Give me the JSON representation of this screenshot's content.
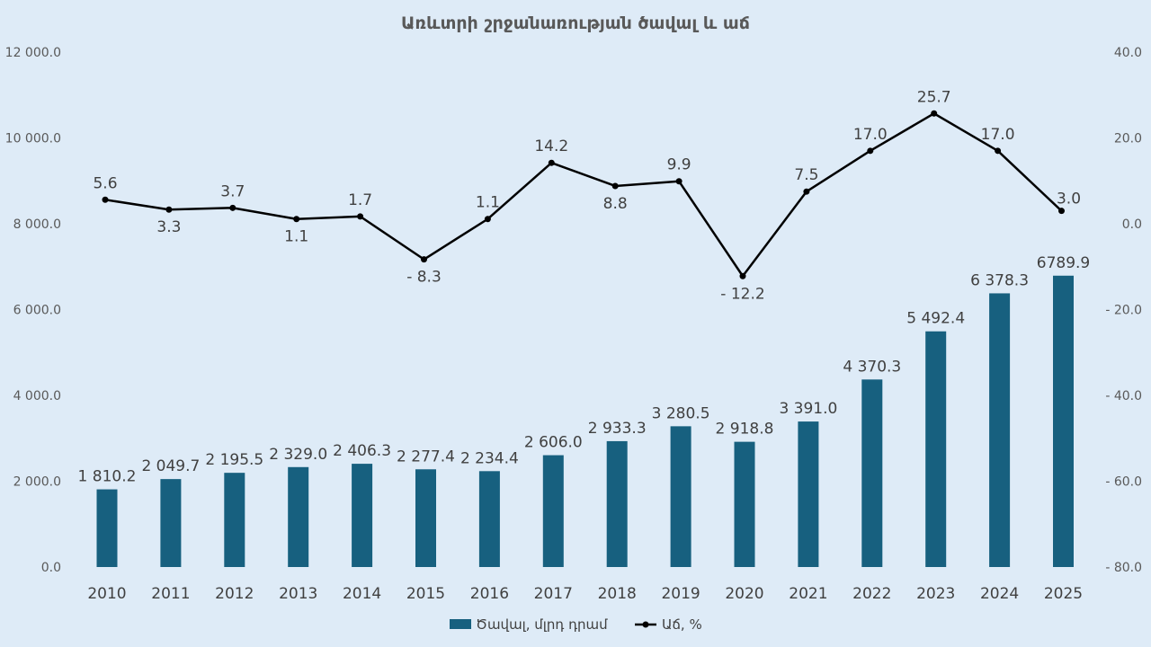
{
  "chart_data": {
    "type": "bar",
    "title": "Առևտրի շրջանառության ծավալ և աճ",
    "categories": [
      "2010",
      "2011",
      "2012",
      "2013",
      "2014",
      "2015",
      "2016",
      "2017",
      "2018",
      "2019",
      "2020",
      "2021",
      "2022",
      "2023",
      "2024",
      "2025"
    ],
    "series": [
      {
        "name": "Ծավալ, մլրդ դրամ",
        "type": "bar",
        "axis": "left",
        "color": "#17607f",
        "values": [
          1810.2,
          2049.7,
          2195.5,
          2329.0,
          2406.3,
          2277.4,
          2234.4,
          2606.0,
          2933.3,
          3280.5,
          2918.8,
          3391.0,
          4370.3,
          5492.4,
          6378.3,
          6789.9
        ],
        "labels": [
          "1 810.2",
          "2 049.7",
          "2 195.5",
          "2 329.0",
          "2 406.3",
          "2 277.4",
          "2 234.4",
          "2 606.0",
          "2 933.3",
          "3 280.5",
          "2 918.8",
          "3 391.0",
          "4 370.3",
          "5 492.4",
          "6 378.3",
          "6789.9"
        ]
      },
      {
        "name": "Աճ, %",
        "type": "line",
        "axis": "right",
        "color": "#000000",
        "values": [
          5.6,
          3.3,
          3.7,
          1.1,
          1.7,
          -8.3,
          1.1,
          14.2,
          8.8,
          9.9,
          -12.2,
          7.5,
          17.0,
          25.7,
          17.0,
          3.0
        ],
        "labels": [
          "5.6",
          "3.3",
          "3.7",
          "1.1",
          "1.7",
          "- 8.3",
          "1.1",
          "14.2",
          "8.8",
          "9.9",
          "- 12.2",
          "7.5",
          "17.0",
          "25.7",
          "17.0",
          "3.0"
        ]
      }
    ],
    "y_left": {
      "min": 0,
      "max": 12000,
      "ticks": [
        0,
        2000,
        4000,
        6000,
        8000,
        10000,
        12000
      ],
      "tick_labels": [
        "0.0",
        "2 000.0",
        "4 000.0",
        "6 000.0",
        "8 000.0",
        "10 000.0",
        "12 000.0"
      ]
    },
    "y_right": {
      "min": -80,
      "max": 40,
      "ticks": [
        -80,
        -60,
        -40,
        -20,
        0,
        20,
        40
      ],
      "tick_labels": [
        "- 80.0",
        "- 60.0",
        "- 40.0",
        "- 20.0",
        "0.0",
        "20.0",
        "40.0"
      ]
    },
    "highlight_color": "#e8000b",
    "highlight_index": 15,
    "grid": false,
    "legend_position": "bottom",
    "background": "#deebf7"
  }
}
